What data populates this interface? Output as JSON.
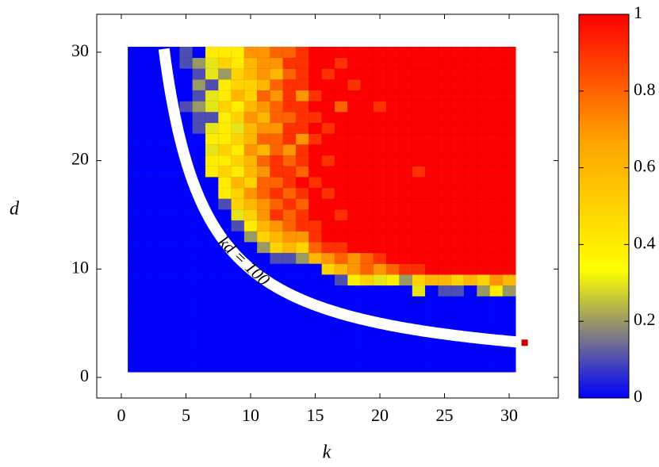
{
  "chart_data": {
    "type": "heatmap",
    "x_label": "k",
    "y_label": "d",
    "xlim": [
      -1.9,
      33.8
    ],
    "ylim": [
      -1.9,
      33.5
    ],
    "xticks": [
      0,
      5,
      10,
      15,
      20,
      25,
      30
    ],
    "yticks": [
      0,
      10,
      20,
      30
    ],
    "colormap": [
      "#0000ff",
      "#ffff00",
      "#ffa500",
      "#ff0000"
    ],
    "clim": [
      0,
      1
    ],
    "cticks": [
      0,
      0.2,
      0.4,
      0.6,
      0.8,
      1
    ],
    "x": [
      1,
      2,
      3,
      4,
      5,
      6,
      7,
      8,
      9,
      10,
      11,
      12,
      13,
      14,
      15,
      16,
      17,
      18,
      19,
      20,
      21,
      22,
      23,
      24,
      25,
      26,
      27,
      28,
      29,
      30
    ],
    "y": [
      1,
      2,
      3,
      4,
      5,
      6,
      7,
      8,
      9,
      10,
      11,
      12,
      13,
      14,
      15,
      16,
      17,
      18,
      19,
      20,
      21,
      22,
      23,
      24,
      25,
      26,
      27,
      28,
      29,
      30
    ],
    "values": [
      [
        0,
        0,
        0,
        0,
        0,
        0,
        0,
        0,
        0,
        0,
        0,
        0,
        0,
        0,
        0,
        0,
        0,
        0,
        0,
        0,
        0,
        0,
        0,
        0,
        0,
        0,
        0,
        0,
        0,
        0
      ],
      [
        0,
        0,
        0,
        0,
        0,
        0,
        0,
        0,
        0,
        0,
        0,
        0,
        0,
        0,
        0,
        0,
        0,
        0,
        0,
        0,
        0,
        0,
        0,
        0,
        0,
        0,
        0,
        0,
        0,
        0
      ],
      [
        0,
        0,
        0,
        0,
        0,
        0,
        0,
        0,
        0,
        0,
        0,
        0,
        0,
        0,
        0,
        0,
        0,
        0,
        0,
        0,
        0,
        0,
        0,
        0,
        0,
        0,
        0,
        0,
        0,
        0
      ],
      [
        0,
        0,
        0,
        0,
        0,
        0,
        0,
        0,
        0,
        0,
        0,
        0,
        0,
        0,
        0,
        0,
        0,
        0,
        0,
        0,
        0,
        0,
        0,
        0,
        0,
        0,
        0,
        0,
        0,
        0
      ],
      [
        0,
        0,
        0,
        0,
        0,
        0,
        0,
        0,
        0,
        0,
        0,
        0,
        0,
        0,
        0,
        0,
        0,
        0,
        0,
        0,
        0,
        0,
        0,
        0,
        0,
        0,
        0,
        0,
        0,
        0
      ],
      [
        0,
        0,
        0,
        0,
        0,
        0,
        0,
        0,
        0,
        0,
        0,
        0,
        0,
        0,
        0,
        0,
        0,
        0,
        0,
        0,
        0,
        0,
        0,
        0,
        0,
        0,
        0,
        0,
        0,
        0
      ],
      [
        0,
        0,
        0,
        0,
        0,
        0,
        0,
        0,
        0,
        0,
        0,
        0,
        0,
        0,
        0,
        0,
        0,
        0,
        0,
        0,
        0,
        0,
        0,
        0,
        0,
        0,
        0,
        0,
        0,
        0
      ],
      [
        0,
        0,
        0,
        0,
        0,
        0,
        0,
        0,
        0,
        0,
        0,
        0,
        0,
        0,
        0,
        0,
        0,
        0,
        0,
        0,
        0,
        0,
        0.3,
        0,
        0.1,
        0.1,
        0,
        0.2,
        0.4,
        0.2
      ],
      [
        0,
        0,
        0,
        0,
        0,
        0,
        0,
        0,
        0,
        0,
        0,
        0,
        0,
        0,
        0,
        0,
        0.1,
        0.4,
        0.5,
        0.3,
        0.4,
        0.2,
        0.5,
        0.6,
        0.6,
        0.5,
        0.6,
        0.5,
        0.7,
        0.6
      ],
      [
        0,
        0,
        0,
        0,
        0,
        0,
        0,
        0,
        0,
        0,
        0,
        0,
        0,
        0,
        0,
        0.5,
        0.6,
        0.7,
        0.8,
        0.7,
        0.8,
        0.9,
        0.9,
        1,
        1,
        1,
        1,
        1,
        1,
        1
      ],
      [
        0,
        0,
        0,
        0,
        0,
        0,
        0,
        0,
        0,
        0,
        0,
        0.1,
        0.1,
        0.2,
        0.6,
        0.7,
        0.8,
        0.7,
        0.8,
        0.9,
        1,
        1,
        1,
        1,
        1,
        1,
        1,
        1,
        1,
        1
      ],
      [
        0,
        0,
        0,
        0,
        0,
        0,
        0,
        0,
        0,
        0,
        0.2,
        0.5,
        0.6,
        0.5,
        0.8,
        0.9,
        0.9,
        1,
        1,
        1,
        1,
        1,
        1,
        1,
        1,
        1,
        1,
        1,
        1,
        1
      ],
      [
        0,
        0,
        0,
        0,
        0,
        0,
        0,
        0,
        0,
        0.2,
        0.5,
        0.6,
        0.7,
        0.7,
        0.9,
        1,
        1,
        1,
        1,
        1,
        1,
        1,
        1,
        1,
        1,
        1,
        1,
        1,
        1,
        1
      ],
      [
        0,
        0,
        0,
        0,
        0,
        0,
        0,
        0,
        0.1,
        0.4,
        0.6,
        0.7,
        0.8,
        0.9,
        0.9,
        1,
        1,
        1,
        1,
        1,
        1,
        1,
        1,
        1,
        1,
        1,
        1,
        1,
        1,
        1
      ],
      [
        0,
        0,
        0,
        0,
        0,
        0,
        0,
        0,
        0.3,
        0.5,
        0.7,
        0.9,
        0.8,
        0.9,
        1,
        1,
        0.9,
        1,
        1,
        1,
        1,
        1,
        1,
        1,
        1,
        1,
        1,
        1,
        1,
        1
      ],
      [
        0,
        0,
        0,
        0,
        0,
        0,
        0,
        0.1,
        0.5,
        0.6,
        0.7,
        0.8,
        0.9,
        0.8,
        1,
        1,
        1,
        1,
        1,
        1,
        1,
        1,
        1,
        1,
        1,
        1,
        1,
        1,
        1,
        1
      ],
      [
        0,
        0,
        0,
        0,
        0,
        0,
        0,
        0.4,
        0.5,
        0.7,
        0.8,
        0.9,
        0.8,
        0.9,
        1,
        0.9,
        1,
        1,
        1,
        1,
        1,
        1,
        1,
        1,
        1,
        1,
        1,
        1,
        1,
        1
      ],
      [
        0,
        0,
        0,
        0,
        0,
        0,
        0,
        0.4,
        0.6,
        0.5,
        0.8,
        0.8,
        0.9,
        1,
        0.9,
        1,
        1,
        1,
        1,
        1,
        1,
        1,
        1,
        1,
        1,
        1,
        1,
        1,
        1,
        1
      ],
      [
        0,
        0,
        0,
        0,
        0,
        0,
        0.4,
        0.5,
        0.4,
        0.6,
        0.7,
        0.9,
        0.9,
        0.8,
        1,
        1,
        1,
        1,
        1,
        1,
        1,
        1,
        0.9,
        1,
        1,
        1,
        1,
        1,
        1,
        1
      ],
      [
        0,
        0,
        0,
        0,
        0,
        0,
        0.4,
        0.4,
        0.5,
        0.6,
        0.8,
        0.9,
        0.8,
        0.9,
        1,
        0.9,
        1,
        1,
        1,
        1,
        1,
        1,
        1,
        1,
        1,
        1,
        1,
        1,
        1,
        1
      ],
      [
        0,
        0,
        0,
        0,
        0,
        0,
        0.3,
        0.5,
        0.4,
        0.7,
        0.6,
        0.8,
        0.7,
        0.9,
        1,
        1,
        1,
        1,
        1,
        1,
        1,
        1,
        1,
        1,
        1,
        1,
        1,
        1,
        1,
        1
      ],
      [
        0,
        0,
        0,
        0,
        0,
        0,
        0.4,
        0.4,
        0.5,
        0.6,
        0.8,
        0.8,
        0.9,
        0.7,
        0.9,
        1,
        1,
        1,
        1,
        1,
        1,
        1,
        1,
        1,
        1,
        1,
        1,
        1,
        1,
        1
      ],
      [
        0,
        0,
        0,
        0,
        0,
        0.1,
        0.3,
        0.4,
        0.3,
        0.6,
        0.7,
        0.7,
        0.9,
        0.9,
        1,
        0.9,
        1,
        1,
        1,
        1,
        1,
        1,
        1,
        1,
        1,
        1,
        1,
        1,
        1,
        1
      ],
      [
        0,
        0,
        0,
        0,
        0,
        0.1,
        0.1,
        0.4,
        0.5,
        0.7,
        0.6,
        0.8,
        0.8,
        0.9,
        0.9,
        1,
        1,
        1,
        1,
        1,
        1,
        1,
        1,
        1,
        1,
        1,
        1,
        1,
        1,
        1
      ],
      [
        0,
        0,
        0,
        0,
        0.1,
        0.2,
        0.3,
        0.5,
        0.4,
        0.6,
        0.7,
        0.8,
        0.9,
        0.9,
        1,
        1,
        0.8,
        1,
        1,
        0.9,
        1,
        1,
        1,
        1,
        1,
        1,
        1,
        1,
        1,
        1
      ],
      [
        0,
        0,
        0,
        0,
        0,
        0.1,
        0.3,
        0.4,
        0.6,
        0.5,
        0.8,
        0.7,
        0.9,
        0.7,
        0.9,
        1,
        1,
        1,
        1,
        1,
        1,
        1,
        1,
        1,
        1,
        1,
        1,
        1,
        1,
        1
      ],
      [
        0,
        0,
        0,
        0,
        0,
        0.2,
        0.1,
        0.4,
        0.5,
        0.5,
        0.6,
        0.8,
        0.9,
        0.9,
        1,
        1,
        1,
        0.9,
        1,
        1,
        1,
        1,
        1,
        1,
        1,
        1,
        1,
        1,
        1,
        1
      ],
      [
        0,
        0,
        0,
        0,
        0,
        0.1,
        0.3,
        0.2,
        0.5,
        0.6,
        0.7,
        0.6,
        0.8,
        0.9,
        1,
        0.9,
        1,
        1,
        1,
        1,
        1,
        1,
        1,
        1,
        1,
        1,
        1,
        1,
        1,
        1
      ],
      [
        0,
        0,
        0,
        0,
        0.1,
        0.2,
        0.3,
        0.5,
        0.4,
        0.6,
        0.7,
        0.7,
        0.9,
        0.9,
        1,
        1,
        0.9,
        1,
        1,
        1,
        1,
        1,
        1,
        1,
        1,
        1,
        1,
        1,
        1,
        1
      ],
      [
        0,
        0,
        0,
        0,
        0.1,
        0,
        0.4,
        0.4,
        0.4,
        0.7,
        0.7,
        0.8,
        0.8,
        0.9,
        1,
        1,
        1,
        1,
        1,
        1,
        1,
        1,
        1,
        1,
        1,
        1,
        1,
        1,
        1,
        1
      ]
    ],
    "curve": {
      "label": "kd = 100",
      "product": 100,
      "xlim": [
        3.3,
        31
      ],
      "color": "#ffffff"
    },
    "points": {
      "x": [
        31.2
      ],
      "y": [
        3.2
      ],
      "color": "#cc0000"
    }
  }
}
